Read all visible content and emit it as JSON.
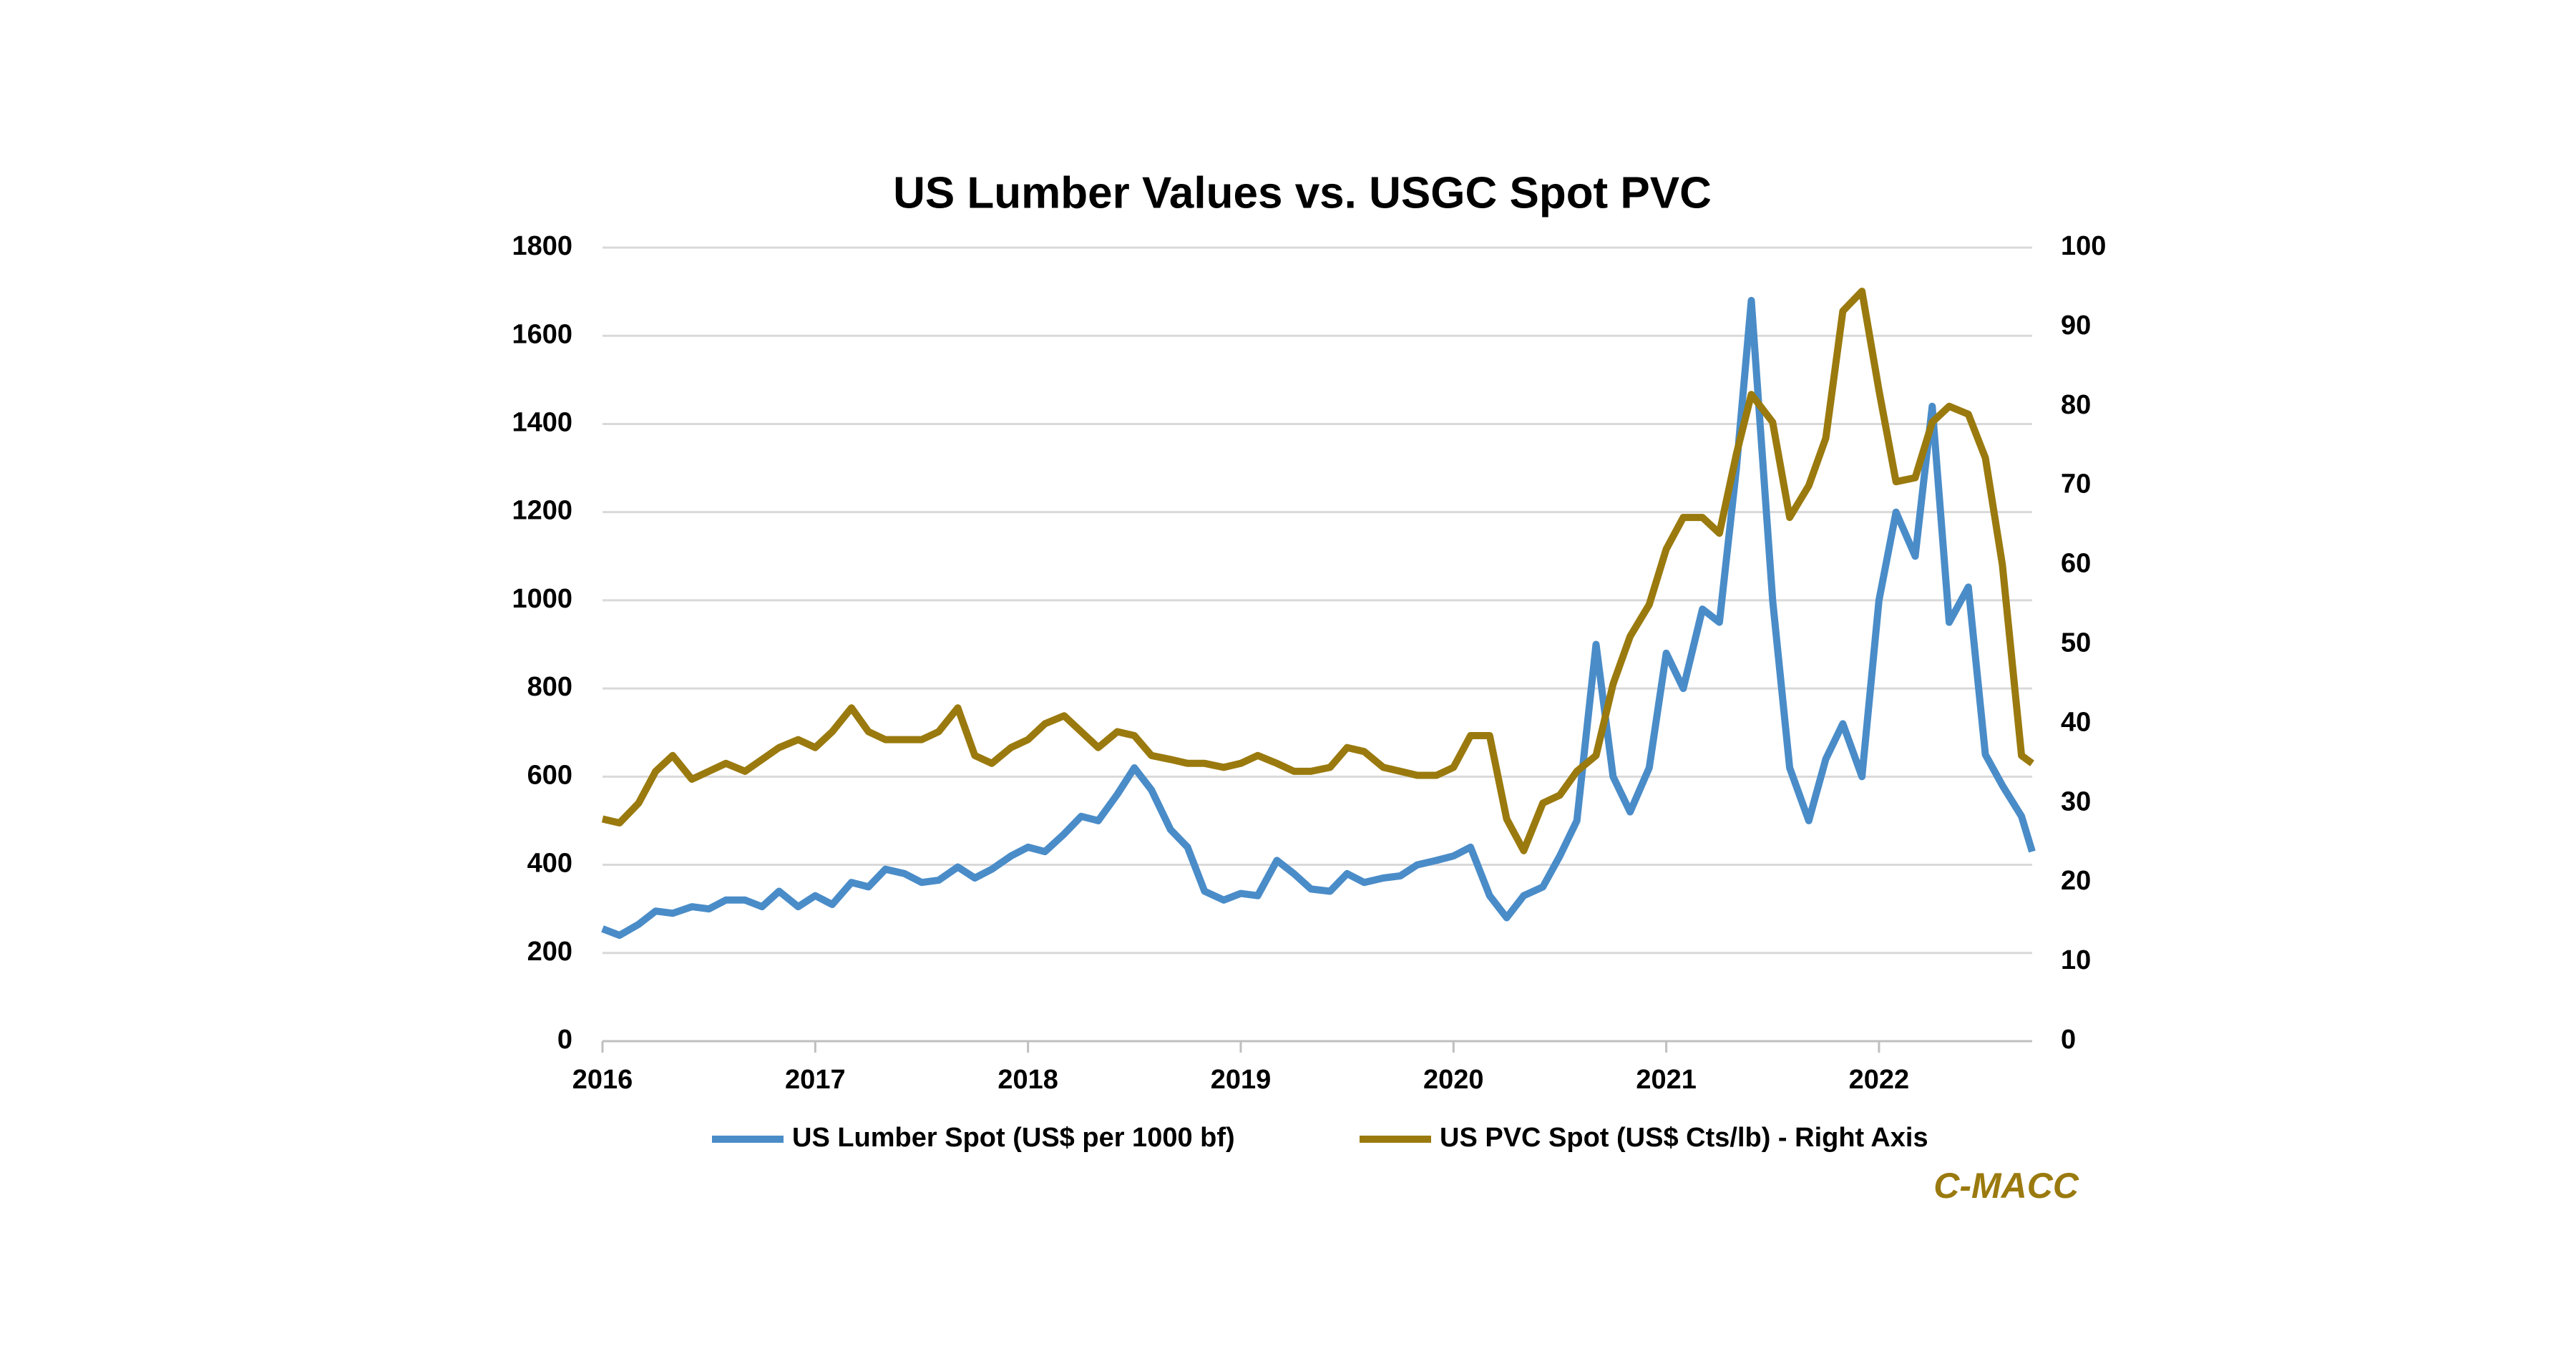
{
  "chart_data": {
    "type": "line",
    "title": "US Lumber Values vs. USGC Spot PVC",
    "source": "C-MACC",
    "x": [
      2016.0,
      2016.08,
      2016.17,
      2016.25,
      2016.33,
      2016.42,
      2016.5,
      2016.58,
      2016.67,
      2016.75,
      2016.83,
      2016.92,
      2017.0,
      2017.08,
      2017.17,
      2017.25,
      2017.33,
      2017.42,
      2017.5,
      2017.58,
      2017.67,
      2017.75,
      2017.83,
      2017.92,
      2018.0,
      2018.08,
      2018.17,
      2018.25,
      2018.33,
      2018.42,
      2018.5,
      2018.58,
      2018.67,
      2018.75,
      2018.83,
      2018.92,
      2019.0,
      2019.08,
      2019.17,
      2019.25,
      2019.33,
      2019.42,
      2019.5,
      2019.58,
      2019.67,
      2019.75,
      2019.83,
      2019.92,
      2020.0,
      2020.08,
      2020.17,
      2020.25,
      2020.33,
      2020.42,
      2020.5,
      2020.58,
      2020.67,
      2020.75,
      2020.83,
      2020.92,
      2021.0,
      2021.08,
      2021.17,
      2021.25,
      2021.33,
      2021.4,
      2021.5,
      2021.58,
      2021.67,
      2021.75,
      2021.83,
      2021.92,
      2022.0,
      2022.08,
      2022.17,
      2022.25,
      2022.33,
      2022.42,
      2022.5,
      2022.58,
      2022.67,
      2022.72
    ],
    "series": [
      {
        "name": "US Lumber Spot (US$ per 1000 bf)",
        "color": "#4a8cc8",
        "axis": "y",
        "values": [
          255,
          240,
          265,
          295,
          290,
          305,
          300,
          320,
          320,
          305,
          340,
          305,
          330,
          310,
          360,
          350,
          390,
          380,
          360,
          365,
          395,
          370,
          390,
          420,
          440,
          430,
          470,
          510,
          500,
          560,
          620,
          570,
          480,
          440,
          340,
          320,
          335,
          330,
          410,
          380,
          345,
          340,
          380,
          360,
          370,
          375,
          400,
          410,
          420,
          440,
          330,
          280,
          330,
          350,
          420,
          500,
          900,
          600,
          520,
          620,
          880,
          800,
          980,
          950,
          1300,
          1680,
          1000,
          620,
          500,
          640,
          720,
          600,
          1000,
          1200,
          1100,
          1440,
          950,
          1030,
          650,
          580,
          510,
          430
        ]
      },
      {
        "name": "US PVC Spot (US$ Cts/lb) - Right Axis",
        "color": "#9a7a0e",
        "axis": "y2",
        "values": [
          28,
          27.5,
          30,
          34,
          36,
          33,
          34,
          35,
          34,
          35.5,
          37,
          38,
          37,
          39,
          42,
          39,
          38,
          38,
          38,
          39,
          42,
          36,
          35,
          37,
          38,
          40,
          41,
          39,
          37,
          39,
          38.5,
          36,
          35.5,
          35,
          35,
          34.5,
          35,
          36,
          35,
          34,
          34,
          34.5,
          37,
          36.5,
          34.5,
          34,
          33.5,
          33.5,
          34.5,
          38.5,
          38.5,
          28,
          24,
          30,
          31,
          34,
          36,
          45,
          51,
          55,
          62,
          66,
          66,
          64,
          74,
          81.5,
          78,
          66,
          70,
          76,
          92,
          94.5,
          82,
          70.5,
          71,
          78,
          80,
          79,
          73.5,
          60,
          36,
          35
        ]
      }
    ],
    "xlim": [
      2016,
      2022.72
    ],
    "xticks": [
      2016,
      2017,
      2018,
      2019,
      2020,
      2021,
      2022
    ],
    "ylim": [
      0,
      1800
    ],
    "yticks": [
      0,
      200,
      400,
      600,
      800,
      1000,
      1200,
      1400,
      1600,
      1800
    ],
    "y2lim": [
      0,
      100
    ],
    "y2ticks": [
      0,
      10,
      20,
      30,
      40,
      50,
      60,
      70,
      80,
      90,
      100
    ],
    "grid": true
  }
}
